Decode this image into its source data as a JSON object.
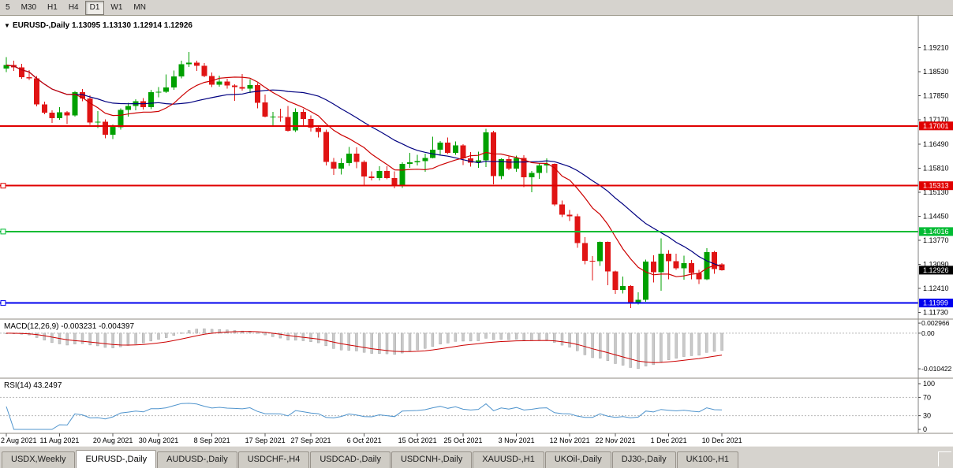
{
  "toolbar": {
    "timeframes": [
      {
        "label": "5",
        "active": false
      },
      {
        "label": "M30",
        "active": false
      },
      {
        "label": "H1",
        "active": false
      },
      {
        "label": "H4",
        "active": false
      },
      {
        "label": "D1",
        "active": true
      },
      {
        "label": "W1",
        "active": false
      },
      {
        "label": "MN",
        "active": false
      }
    ]
  },
  "tabs": {
    "items": [
      {
        "label": "USDX,Weekly",
        "active": false
      },
      {
        "label": "EURUSD-,Daily",
        "active": true
      },
      {
        "label": "AUDUSD-,Daily",
        "active": false
      },
      {
        "label": "USDCHF-,H4",
        "active": false
      },
      {
        "label": "USDCAD-,Daily",
        "active": false
      },
      {
        "label": "USDCNH-,Daily",
        "active": false
      },
      {
        "label": "XAUUSD-,H1",
        "active": false
      },
      {
        "label": "UKOil-,Daily",
        "active": false
      },
      {
        "label": "DJ30-,Daily",
        "active": false
      },
      {
        "label": "UK100-,H1",
        "active": false
      }
    ]
  },
  "chart_data": {
    "type": "candlestick",
    "symbol": "EURUSD-",
    "timeframe": "Daily",
    "title_menu_icon": "▼",
    "title_text": "EURUSD-,Daily 1.13095 1.13130 1.12914 1.12926",
    "ohlc_display": {
      "open": 1.13095,
      "high": 1.1313,
      "low": 1.12914,
      "close": 1.12926
    },
    "colors": {
      "up": "#00a000",
      "down": "#e01414",
      "bg": "#ffffff"
    },
    "price_axis_labels": [
      "1.19210",
      "1.18530",
      "1.17850",
      "1.17170",
      "1.16490",
      "1.15810",
      "1.15130",
      "1.14450",
      "1.13770",
      "1.13090",
      "1.12410",
      "1.11730"
    ],
    "levels": [
      {
        "price": 1.17001,
        "label": "1.17001",
        "color": "#e00000",
        "handle": false
      },
      {
        "price": 1.15313,
        "label": "1.15313",
        "color": "#e00000",
        "handle": true
      },
      {
        "price": 1.14016,
        "label": "1.14016",
        "color": "#00bb33",
        "handle": true
      },
      {
        "price": 1.11999,
        "label": "1.11999",
        "color": "#0000ee",
        "handle": true
      }
    ],
    "current_price": {
      "value": 1.12926,
      "label": "1.12926",
      "bg": "#000000",
      "text_color": "#ffffff"
    },
    "moving_averages": [
      {
        "period": 21,
        "color": "#000080"
      },
      {
        "period": 10,
        "color": "#cc0000"
      }
    ],
    "candles": [
      [
        1.1862,
        1.1895,
        1.1852,
        1.1872
      ],
      [
        1.1872,
        1.1884,
        1.1855,
        1.1866
      ],
      [
        1.1866,
        1.1876,
        1.1833,
        1.1838
      ],
      [
        1.1838,
        1.1858,
        1.183,
        1.1834
      ],
      [
        1.1834,
        1.1841,
        1.1755,
        1.1761
      ],
      [
        1.1761,
        1.1769,
        1.1733,
        1.1738
      ],
      [
        1.1738,
        1.1744,
        1.1709,
        1.1722
      ],
      [
        1.1722,
        1.1753,
        1.1717,
        1.1739
      ],
      [
        1.1739,
        1.1742,
        1.1705,
        1.173
      ],
      [
        1.173,
        1.1799,
        1.1727,
        1.1795
      ],
      [
        1.1795,
        1.1804,
        1.177,
        1.1778
      ],
      [
        1.1778,
        1.1786,
        1.1703,
        1.171
      ],
      [
        1.171,
        1.1742,
        1.1694,
        1.1712
      ],
      [
        1.1712,
        1.1719,
        1.1665,
        1.1675
      ],
      [
        1.1675,
        1.1704,
        1.1663,
        1.1697
      ],
      [
        1.1697,
        1.175,
        1.169,
        1.1745
      ],
      [
        1.1745,
        1.1765,
        1.1727,
        1.1756
      ],
      [
        1.1756,
        1.1775,
        1.1744,
        1.177
      ],
      [
        1.177,
        1.1779,
        1.1747,
        1.1753
      ],
      [
        1.1753,
        1.1802,
        1.1748,
        1.1796
      ],
      [
        1.1796,
        1.181,
        1.1781,
        1.1797
      ],
      [
        1.1797,
        1.1845,
        1.1793,
        1.1809
      ],
      [
        1.1809,
        1.1857,
        1.1802,
        1.184
      ],
      [
        1.184,
        1.1884,
        1.1834,
        1.1875
      ],
      [
        1.1875,
        1.1909,
        1.1867,
        1.1879
      ],
      [
        1.1879,
        1.1885,
        1.1856,
        1.187
      ],
      [
        1.187,
        1.1878,
        1.1838,
        1.1841
      ],
      [
        1.1841,
        1.1851,
        1.181,
        1.1816
      ],
      [
        1.1816,
        1.1842,
        1.1811,
        1.1825
      ],
      [
        1.1825,
        1.1833,
        1.1805,
        1.1814
      ],
      [
        1.1814,
        1.1818,
        1.1771,
        1.181
      ],
      [
        1.181,
        1.1847,
        1.18,
        1.1805
      ],
      [
        1.1805,
        1.1832,
        1.1793,
        1.1816
      ],
      [
        1.1816,
        1.1821,
        1.175,
        1.1766
      ],
      [
        1.1766,
        1.1789,
        1.1724,
        1.1726
      ],
      [
        1.1726,
        1.174,
        1.17,
        1.1726
      ],
      [
        1.1726,
        1.1749,
        1.1712,
        1.1725
      ],
      [
        1.1725,
        1.1756,
        1.1684,
        1.1687
      ],
      [
        1.1687,
        1.175,
        1.1683,
        1.174
      ],
      [
        1.174,
        1.1748,
        1.1701,
        1.172
      ],
      [
        1.172,
        1.173,
        1.1684,
        1.1695
      ],
      [
        1.1695,
        1.17,
        1.1667,
        1.1683
      ],
      [
        1.1683,
        1.169,
        1.1589,
        1.1598
      ],
      [
        1.1598,
        1.161,
        1.1562,
        1.158
      ],
      [
        1.158,
        1.1608,
        1.1563,
        1.1595
      ],
      [
        1.1595,
        1.1641,
        1.1587,
        1.1622
      ],
      [
        1.1622,
        1.164,
        1.1581,
        1.1598
      ],
      [
        1.1598,
        1.1603,
        1.1529,
        1.1557
      ],
      [
        1.1557,
        1.1572,
        1.1546,
        1.1553
      ],
      [
        1.1553,
        1.1586,
        1.1546,
        1.1573
      ],
      [
        1.1573,
        1.1586,
        1.1549,
        1.1553
      ],
      [
        1.1553,
        1.1572,
        1.1524,
        1.153
      ],
      [
        1.153,
        1.1597,
        1.1525,
        1.1593
      ],
      [
        1.1593,
        1.1624,
        1.1582,
        1.1597
      ],
      [
        1.1597,
        1.1618,
        1.1588,
        1.1601
      ],
      [
        1.1601,
        1.1622,
        1.1571,
        1.161
      ],
      [
        1.161,
        1.167,
        1.1609,
        1.1633
      ],
      [
        1.1633,
        1.1658,
        1.1617,
        1.1653
      ],
      [
        1.1653,
        1.1668,
        1.1621,
        1.1624
      ],
      [
        1.1624,
        1.1656,
        1.1619,
        1.1645
      ],
      [
        1.1645,
        1.1648,
        1.159,
        1.1608
      ],
      [
        1.1608,
        1.1626,
        1.1585,
        1.1596
      ],
      [
        1.1596,
        1.1627,
        1.1582,
        1.1603
      ],
      [
        1.1603,
        1.1692,
        1.1584,
        1.1682
      ],
      [
        1.1682,
        1.1686,
        1.1535,
        1.1558
      ],
      [
        1.1558,
        1.1609,
        1.155,
        1.1606
      ],
      [
        1.1606,
        1.1614,
        1.1575,
        1.158
      ],
      [
        1.158,
        1.1616,
        1.1571,
        1.161
      ],
      [
        1.161,
        1.1617,
        1.1527,
        1.1555
      ],
      [
        1.1555,
        1.1573,
        1.1513,
        1.1567
      ],
      [
        1.1567,
        1.1594,
        1.1551,
        1.1588
      ],
      [
        1.1588,
        1.1609,
        1.1567,
        1.1593
      ],
      [
        1.1593,
        1.1594,
        1.1474,
        1.1478
      ],
      [
        1.1478,
        1.1489,
        1.1443,
        1.1449
      ],
      [
        1.1449,
        1.1463,
        1.1432,
        1.1445
      ],
      [
        1.1445,
        1.1452,
        1.1356,
        1.1369
      ],
      [
        1.1369,
        1.1386,
        1.1309,
        1.1319
      ],
      [
        1.1319,
        1.1332,
        1.1263,
        1.1318
      ],
      [
        1.1318,
        1.1374,
        1.1305,
        1.1373
      ],
      [
        1.1373,
        1.1374,
        1.125,
        1.1289
      ],
      [
        1.1289,
        1.1291,
        1.1226,
        1.1237
      ],
      [
        1.1237,
        1.1275,
        1.1227,
        1.1248
      ],
      [
        1.1248,
        1.125,
        1.1186,
        1.1199
      ],
      [
        1.1199,
        1.123,
        1.1196,
        1.1209
      ],
      [
        1.1209,
        1.1322,
        1.1203,
        1.1317
      ],
      [
        1.1317,
        1.1335,
        1.1258,
        1.1287
      ],
      [
        1.1287,
        1.1383,
        1.1235,
        1.1339
      ],
      [
        1.1339,
        1.1349,
        1.1267,
        1.1318
      ],
      [
        1.1318,
        1.1339,
        1.1293,
        1.1298
      ],
      [
        1.1298,
        1.1334,
        1.1266,
        1.1313
      ],
      [
        1.1313,
        1.1321,
        1.1267,
        1.1285
      ],
      [
        1.1285,
        1.1293,
        1.1253,
        1.1267
      ],
      [
        1.1267,
        1.1355,
        1.1265,
        1.1344
      ],
      [
        1.1344,
        1.1347,
        1.1282,
        1.1296
      ],
      [
        1.13095,
        1.1313,
        1.12914,
        1.12926
      ]
    ],
    "date_labels": [
      {
        "index": 0,
        "label": "2 Aug 2021"
      },
      {
        "index": 7,
        "label": "11 Aug 2021"
      },
      {
        "index": 14,
        "label": "20 Aug 2021"
      },
      {
        "index": 20,
        "label": "30 Aug 2021"
      },
      {
        "index": 27,
        "label": "8 Sep 2021"
      },
      {
        "index": 34,
        "label": "17 Sep 2021"
      },
      {
        "index": 40,
        "label": "27 Sep 2021"
      },
      {
        "index": 47,
        "label": "6 Oct 2021"
      },
      {
        "index": 54,
        "label": "15 Oct 2021"
      },
      {
        "index": 60,
        "label": "25 Oct 2021"
      },
      {
        "index": 67,
        "label": "3 Nov 2021"
      },
      {
        "index": 74,
        "label": "12 Nov 2021"
      },
      {
        "index": 80,
        "label": "22 Nov 2021"
      },
      {
        "index": 87,
        "label": "1 Dec 2021"
      },
      {
        "index": 94,
        "label": "10 Dec 2021"
      }
    ],
    "indicators": {
      "macd": {
        "title_text": "MACD(12,26,9) -0.003231 -0.004397",
        "fast": 12,
        "slow": 26,
        "signal": 9,
        "axis_labels": [
          {
            "value": 0.002966,
            "label": "0.002966"
          },
          {
            "value": 0,
            "label": "0.00"
          },
          {
            "value": -0.010422,
            "label": "-0.010422"
          }
        ],
        "hist_color": "#c9c9c9",
        "signal_color": "#cc0000"
      },
      "rsi": {
        "title_text": "RSI(14) 43.2497",
        "period": 14,
        "color": "#4f94cd",
        "axis_labels": [
          {
            "value": 100,
            "label": "100"
          },
          {
            "value": 70,
            "label": "70"
          },
          {
            "value": 30,
            "label": "30"
          },
          {
            "value": 0,
            "label": "0"
          }
        ],
        "dashed_levels": [
          70,
          30
        ]
      }
    }
  }
}
